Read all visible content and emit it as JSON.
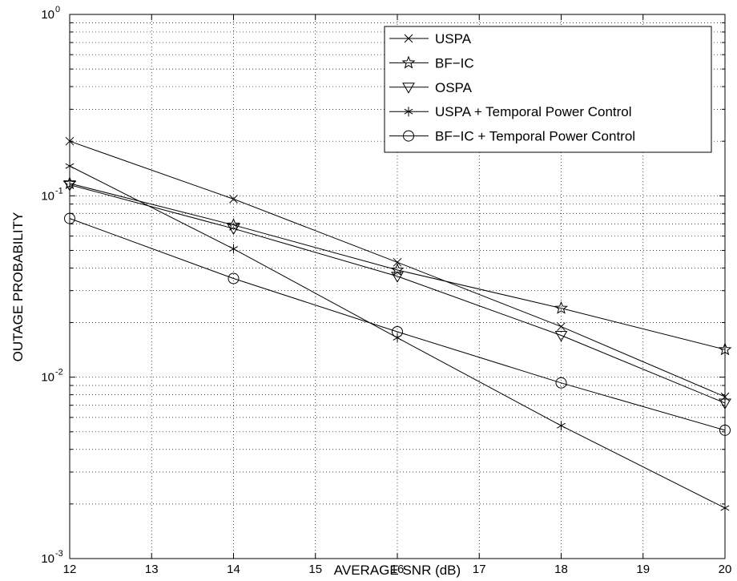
{
  "chart_data": {
    "type": "line",
    "title": "",
    "xlabel": "AVERAGE SNR (dB)",
    "ylabel": "OUTAGE PROBABILITY",
    "xlim": [
      12,
      20
    ],
    "ylim": [
      0.001,
      1
    ],
    "yscale": "log",
    "grid": true,
    "legend_position": "top-right",
    "x_ticks": [
      12,
      13,
      14,
      15,
      16,
      17,
      18,
      19,
      20
    ],
    "y_ticks": [
      {
        "value": 0.001,
        "base": "10",
        "exp": "-3"
      },
      {
        "value": 0.01,
        "base": "10",
        "exp": "-2"
      },
      {
        "value": 0.1,
        "base": "10",
        "exp": "-1"
      },
      {
        "value": 1,
        "base": "10",
        "exp": "0"
      }
    ],
    "x": [
      12,
      14,
      16,
      18,
      20
    ],
    "series": [
      {
        "name": "USPA",
        "marker": "x",
        "values": [
          0.2,
          0.096,
          0.043,
          0.019,
          0.0078
        ]
      },
      {
        "name": "BF−IC",
        "marker": "star",
        "values": [
          0.117,
          0.069,
          0.039,
          0.024,
          0.0142
        ]
      },
      {
        "name": "OSPA",
        "marker": "triangle-down",
        "values": [
          0.115,
          0.066,
          0.036,
          0.017,
          0.0072
        ]
      },
      {
        "name": "USPA + Temporal Power Control",
        "marker": "asterisk",
        "values": [
          0.146,
          0.051,
          0.0165,
          0.0054,
          0.0019
        ]
      },
      {
        "name": "BF−IC + Temporal Power Control",
        "marker": "circle",
        "values": [
          0.075,
          0.035,
          0.0178,
          0.0093,
          0.0051
        ]
      }
    ]
  }
}
